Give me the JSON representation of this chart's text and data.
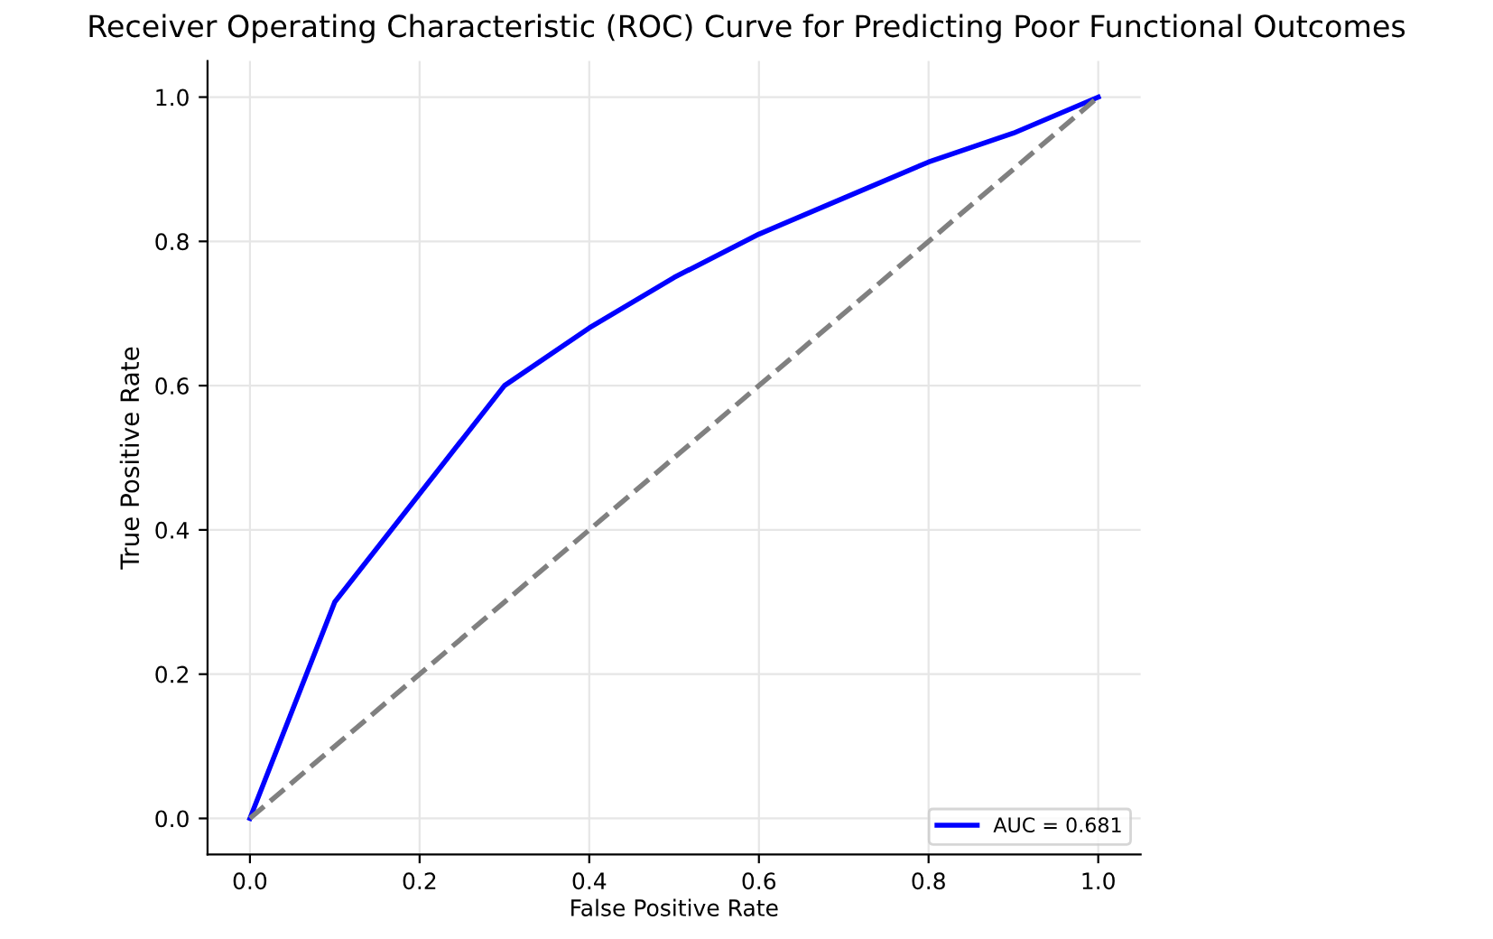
{
  "chart_data": {
    "type": "line",
    "title": "Receiver Operating Characteristic (ROC) Curve for Predicting Poor Functional Outcomes",
    "xlabel": "False Positive Rate",
    "ylabel": "True Positive Rate",
    "series": [
      {
        "name": "AUC = 0.681",
        "color": "#0000ff",
        "x": [
          0,
          0.1,
          0.3,
          0.4,
          0.5,
          0.6,
          0.7,
          0.8,
          0.9,
          1.0
        ],
        "values": [
          0,
          0.3,
          0.6,
          0.68,
          0.75,
          0.81,
          0.86,
          0.91,
          0.95,
          1.0
        ],
        "line_style": "solid"
      },
      {
        "color": "#808080",
        "x": [
          0,
          1
        ],
        "values": [
          0,
          1
        ],
        "line_style": "dashed"
      }
    ],
    "xlim": [
      -0.05,
      1.05
    ],
    "ylim": [
      -0.05,
      1.05
    ],
    "xticks": [
      {
        "value": 0,
        "label": "0.0"
      },
      0.2,
      0.4,
      0.6,
      0.8,
      {
        "value": 1,
        "label": "1.0"
      }
    ],
    "yticks": [
      {
        "value": 0,
        "label": "0.0"
      },
      0.2,
      0.4,
      0.6,
      0.8,
      {
        "value": 1,
        "label": "1.0"
      }
    ],
    "grid": true,
    "legend": "lower right",
    "marker": "none"
  }
}
